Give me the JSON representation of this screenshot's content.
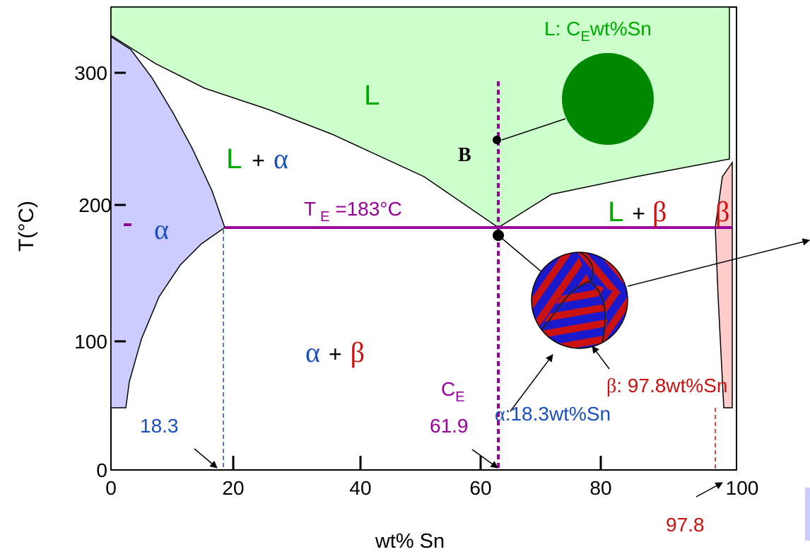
{
  "axes": {
    "x_label": "wt% Sn",
    "y_label": "T(°C)",
    "x_ticks": [
      "0",
      "20",
      "40",
      "60",
      "80",
      "100"
    ],
    "y_ticks": [
      "0",
      "100",
      "200",
      "300"
    ]
  },
  "liquid_note": {
    "prefix": "L:  C",
    "sub": "E",
    "suffix": "wt%Sn"
  },
  "regions": {
    "liquid": "L",
    "alpha": "α",
    "beta": "β",
    "l_alpha": {
      "l": "L",
      "plus": "+",
      "alpha": "α"
    },
    "l_beta": {
      "l": "L",
      "plus": "+",
      "beta": "β"
    },
    "alpha_beta": {
      "alpha": "α",
      "plus": "+",
      "beta": "β"
    }
  },
  "point_b": "B",
  "eutectic": {
    "t": "T",
    "sub": "E",
    "value": " =183°C"
  },
  "ce": {
    "c": "C",
    "sub": "E",
    "value": "61.9"
  },
  "alpha_comp": {
    "symbol": "α",
    "text": ":18.3wt%Sn"
  },
  "beta_comp": {
    "symbol": "β",
    "text": ":  97.8wt%Sn"
  },
  "alpha_limit": "18.3",
  "beta_limit": "97.8"
}
